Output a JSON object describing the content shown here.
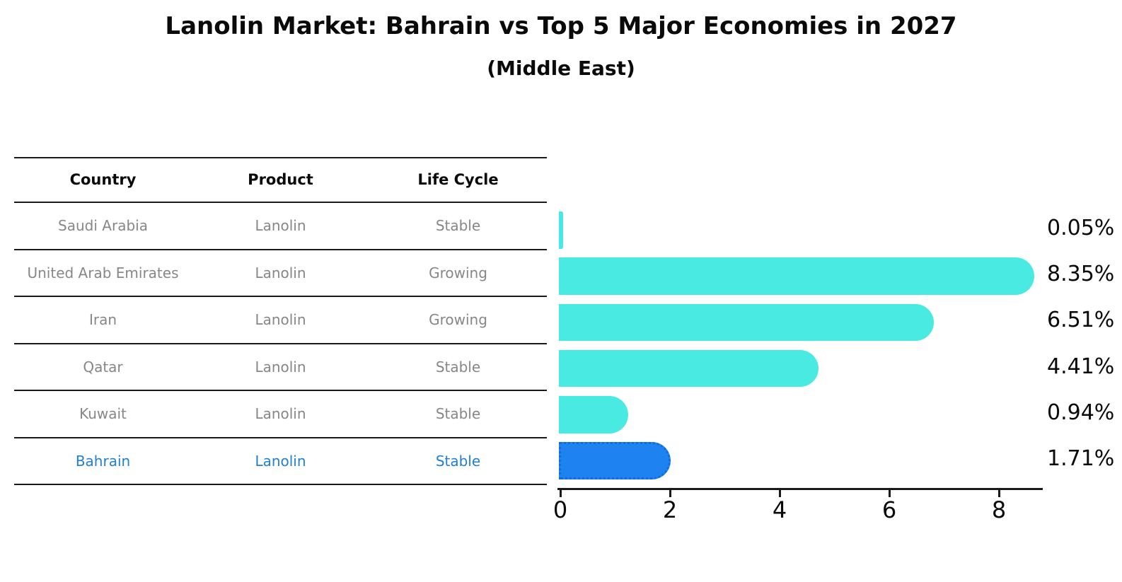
{
  "title": "Lanolin Market: Bahrain vs Top 5 Major Economies in 2027",
  "subtitle": "(Middle East)",
  "table": {
    "headers": [
      "Country",
      "Product",
      "Life Cycle"
    ],
    "rows": [
      {
        "country": "Saudi Arabia",
        "product": "Lanolin",
        "life_cycle": "Stable",
        "highlight": false
      },
      {
        "country": "United Arab Emirates",
        "product": "Lanolin",
        "life_cycle": "Growing",
        "highlight": false
      },
      {
        "country": "Iran",
        "product": "Lanolin",
        "life_cycle": "Growing",
        "highlight": false
      },
      {
        "country": "Qatar",
        "product": "Lanolin",
        "life_cycle": "Stable",
        "highlight": false
      },
      {
        "country": "Kuwait",
        "product": "Lanolin",
        "life_cycle": "Stable",
        "highlight": false
      },
      {
        "country": "Bahrain",
        "product": "Lanolin",
        "life_cycle": "Stable",
        "highlight": true
      }
    ]
  },
  "chart_data": {
    "type": "bar",
    "orientation": "horizontal",
    "title": "Lanolin Market: Bahrain vs Top 5 Major Economies in 2027",
    "subtitle": "(Middle East)",
    "categories": [
      "Saudi Arabia",
      "United Arab Emirates",
      "Iran",
      "Qatar",
      "Kuwait",
      "Bahrain"
    ],
    "values": [
      0.05,
      8.35,
      6.51,
      4.41,
      0.94,
      1.71
    ],
    "value_labels": [
      "0.05%",
      "8.35%",
      "6.51%",
      "4.41%",
      "0.94%",
      "1.71%"
    ],
    "xticks": [
      0,
      2,
      4,
      6,
      8
    ],
    "xlim": [
      0,
      8.8
    ],
    "highlight_index": 5,
    "grid": false,
    "legend": "none",
    "colors": {
      "bar": "#49EAE2",
      "highlight_bar": "#1E83F0",
      "highlight_border": "#0f6cdc",
      "axis": "#1a1a1a",
      "table_text": "#878787",
      "highlight_text": "#2180D0"
    }
  }
}
